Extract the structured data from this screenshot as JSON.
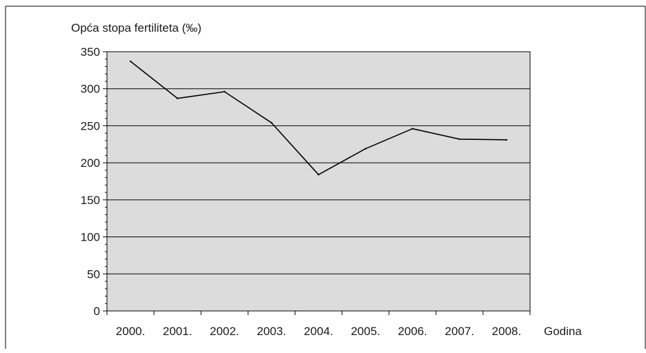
{
  "chart_data": {
    "type": "line",
    "ylabel": "Opća stopa fertiliteta (‰)",
    "xlabel": "Godina",
    "categories": [
      "2000.",
      "2001.",
      "2002.",
      "2003.",
      "2004.",
      "2005.",
      "2006.",
      "2007.",
      "2008."
    ],
    "series": [
      {
        "values": [
          337,
          287,
          296,
          254,
          184,
          219,
          246,
          232,
          231
        ]
      }
    ],
    "ylim": [
      0,
      350
    ],
    "yticks": [
      0,
      50,
      100,
      150,
      200,
      250,
      300,
      350
    ],
    "grid": true,
    "legend": "none",
    "colors": {
      "plot_background": "#dcdcdc",
      "line": "#000000",
      "gridline": "#000000",
      "frame": "#000000"
    }
  }
}
